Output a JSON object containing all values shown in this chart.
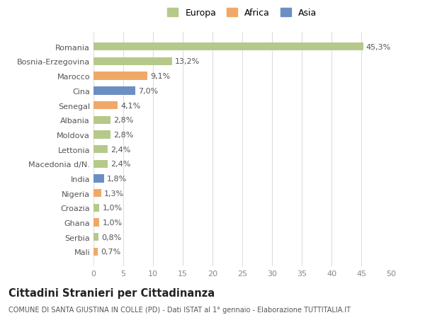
{
  "categories": [
    "Mali",
    "Serbia",
    "Ghana",
    "Croazia",
    "Nigeria",
    "India",
    "Macedonia d/N.",
    "Lettonia",
    "Moldova",
    "Albania",
    "Senegal",
    "Cina",
    "Marocco",
    "Bosnia-Erzegovina",
    "Romania"
  ],
  "values": [
    0.7,
    0.8,
    1.0,
    1.0,
    1.3,
    1.8,
    2.4,
    2.4,
    2.8,
    2.8,
    4.1,
    7.0,
    9.1,
    13.2,
    45.3
  ],
  "labels": [
    "0,7%",
    "0,8%",
    "1,0%",
    "1,0%",
    "1,3%",
    "1,8%",
    "2,4%",
    "2,4%",
    "2,8%",
    "2,8%",
    "4,1%",
    "7,0%",
    "9,1%",
    "13,2%",
    "45,3%"
  ],
  "colors": [
    "#f0a868",
    "#b5c98a",
    "#f0a868",
    "#b5c98a",
    "#f0a868",
    "#6b8ec4",
    "#b5c98a",
    "#b5c98a",
    "#b5c98a",
    "#b5c98a",
    "#f0a868",
    "#6b8ec4",
    "#f0a868",
    "#b5c98a",
    "#b5c98a"
  ],
  "legend_labels": [
    "Europa",
    "Africa",
    "Asia"
  ],
  "legend_colors": [
    "#b5c98a",
    "#f0a868",
    "#6b8ec4"
  ],
  "title": "Cittadini Stranieri per Cittadinanza",
  "subtitle": "COMUNE DI SANTA GIUSTINA IN COLLE (PD) - Dati ISTAT al 1° gennaio - Elaborazione TUTTITALIA.IT",
  "xlim": [
    0,
    50
  ],
  "xticks": [
    0,
    5,
    10,
    15,
    20,
    25,
    30,
    35,
    40,
    45,
    50
  ],
  "background_color": "#ffffff",
  "grid_color": "#dddddd",
  "bar_height": 0.55,
  "label_fontsize": 8.0,
  "tick_fontsize": 8.0,
  "title_fontsize": 10.5,
  "subtitle_fontsize": 7.0
}
